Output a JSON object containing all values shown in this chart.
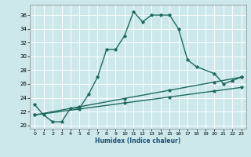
{
  "xlabel": "Humidex (Indice chaleur)",
  "bg_color": "#cce8ea",
  "grid_color": "#ffffff",
  "line_color": "#1e6b5e",
  "xlim": [
    -0.5,
    23.5
  ],
  "ylim": [
    19.5,
    37.5
  ],
  "yticks": [
    20,
    22,
    24,
    26,
    28,
    30,
    32,
    34,
    36
  ],
  "xticks": [
    0,
    1,
    2,
    3,
    4,
    5,
    6,
    7,
    8,
    9,
    10,
    11,
    12,
    13,
    14,
    15,
    16,
    17,
    18,
    19,
    20,
    21,
    22,
    23
  ],
  "series1_x": [
    0,
    1,
    2,
    3,
    4,
    5,
    6,
    7,
    8,
    9,
    10,
    11,
    12,
    13,
    14,
    15,
    16,
    17,
    18,
    20,
    21,
    22,
    23
  ],
  "series1_y": [
    23.0,
    21.5,
    20.5,
    20.5,
    22.5,
    22.5,
    24.5,
    27.0,
    31.0,
    31.0,
    33.0,
    36.5,
    35.0,
    36.0,
    36.0,
    36.0,
    34.0,
    29.5,
    28.5,
    27.5,
    26.0,
    26.5,
    27.0
  ],
  "line1_x": [
    0,
    23
  ],
  "line1_y": [
    21.5,
    27.0
  ],
  "line1_markers_x": [
    0,
    5,
    10,
    15,
    20,
    23
  ],
  "line1_markers_y": [
    21.5,
    22.7,
    23.87,
    25.04,
    26.2,
    27.0
  ],
  "line2_x": [
    0,
    23
  ],
  "line2_y": [
    21.5,
    25.5
  ],
  "line2_markers_x": [
    0,
    5,
    10,
    15,
    20,
    23
  ],
  "line2_markers_y": [
    21.5,
    22.37,
    23.24,
    24.11,
    24.97,
    25.5
  ]
}
